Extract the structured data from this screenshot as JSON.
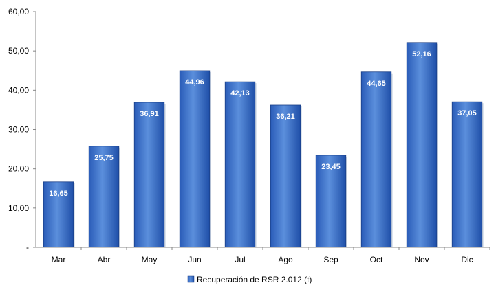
{
  "chart_data": {
    "type": "bar",
    "categories": [
      "Mar",
      "Abr",
      "May",
      "Jun",
      "Jul",
      "Ago",
      "Sep",
      "Oct",
      "Nov",
      "Dic"
    ],
    "series": [
      {
        "name": "Recuperación de RSR 2.012 (t)",
        "values": [
          16.65,
          25.75,
          36.91,
          44.96,
          42.13,
          36.21,
          23.45,
          44.65,
          52.16,
          37.05
        ],
        "labels": [
          "16,65",
          "25,75",
          "36,91",
          "44,96",
          "42,13",
          "36,21",
          "23,45",
          "44,65",
          "52,16",
          "37,05"
        ]
      }
    ],
    "ylim": [
      0,
      60
    ],
    "yticks": [
      0,
      10,
      20,
      30,
      40,
      50,
      60
    ],
    "ytick_labels": [
      "-",
      "10,00",
      "20,00",
      "30,00",
      "40,00",
      "50,00",
      "60,00"
    ],
    "title": "",
    "xlabel": "",
    "ylabel": "",
    "grid": false,
    "legend_position": "bottom",
    "colors": {
      "bar_light": "#5b8fdc",
      "bar_dark": "#1f4fa8",
      "bar_edge": "#1a3f86",
      "axis": "#888888"
    }
  }
}
